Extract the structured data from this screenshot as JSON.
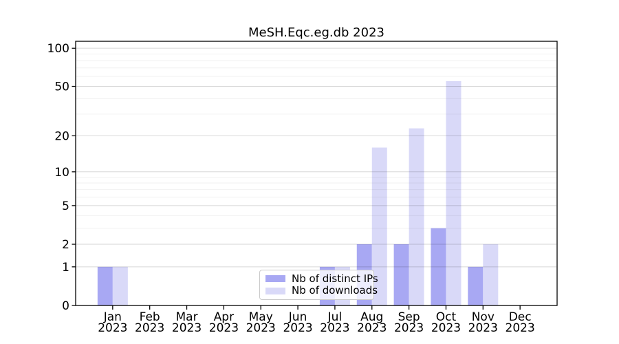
{
  "chart_data": {
    "type": "bar",
    "title": "MeSH.Eqc.eg.db 2023",
    "categories": [
      "Jan",
      "Feb",
      "Mar",
      "Apr",
      "May",
      "Jun",
      "Jul",
      "Aug",
      "Sep",
      "Oct",
      "Nov",
      "Dec"
    ],
    "year": "2023",
    "series": [
      {
        "name": "Nb of distinct IPs",
        "color": "#a8a8f3",
        "values": [
          1,
          0,
          0,
          0,
          0,
          0,
          1,
          2,
          2,
          3,
          1,
          0
        ]
      },
      {
        "name": "Nb of downloads",
        "color": "#d9d9f8",
        "values": [
          1,
          0,
          0,
          0,
          0,
          0,
          1,
          16,
          23,
          55,
          2,
          0
        ]
      }
    ],
    "yscale": "log1p",
    "ylim": [
      0,
      113
    ],
    "yticks": [
      0,
      1,
      2,
      5,
      10,
      20,
      50,
      100
    ],
    "minor_grid_values": [
      3,
      4,
      6,
      7,
      8,
      9,
      30,
      40,
      60,
      70,
      80,
      90
    ],
    "grid": true,
    "legend_position": "lower-center",
    "frame_color": "#000000",
    "major_grid_color": "#d9d9d9",
    "minor_grid_color": "#f0f0f0"
  }
}
